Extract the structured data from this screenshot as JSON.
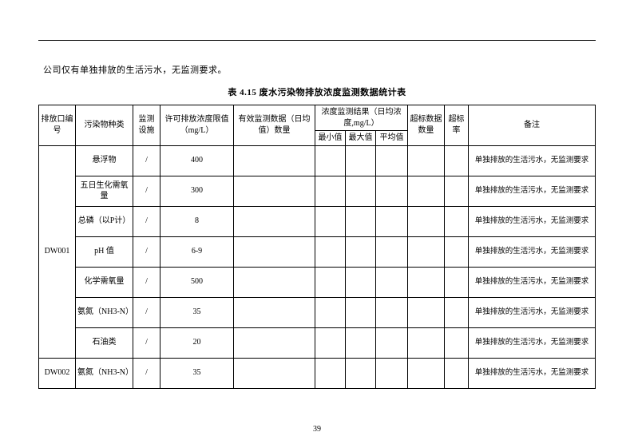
{
  "intro_text": "公司仅有单独排放的生活污水，无监测要求。",
  "table_caption": "表 4.15  废水污染物排放浓度监测数据统计表",
  "page_number": "39",
  "headers": {
    "outlet": "排放口编号",
    "pollutant": "污染物种类",
    "facility": "监测设施",
    "limit": "许可排放浓度限值（mg/L）",
    "valid_count": "有效监测数据（日均值）数量",
    "result_group": "浓度监测结果（日均浓度,mg/L）",
    "min": "最小值",
    "max": "最大值",
    "avg": "平均值",
    "exceed_count": "超标数据数量",
    "exceed_rate": "超标率",
    "remark": "备注"
  },
  "groups": [
    {
      "outlet": "DW001",
      "rows": [
        {
          "pollutant": "悬浮物",
          "facility": "/",
          "limit": "400",
          "valid": "",
          "min": "",
          "max": "",
          "avg": "",
          "excn": "",
          "excr": "",
          "remark": "单独排放的生活污水，无监测要求"
        },
        {
          "pollutant": "五日生化需氧量",
          "facility": "/",
          "limit": "300",
          "valid": "",
          "min": "",
          "max": "",
          "avg": "",
          "excn": "",
          "excr": "",
          "remark": "单独排放的生活污水，无监测要求"
        },
        {
          "pollutant": "总磷（以P计）",
          "facility": "/",
          "limit": "8",
          "valid": "",
          "min": "",
          "max": "",
          "avg": "",
          "excn": "",
          "excr": "",
          "remark": "单独排放的生活污水，无监测要求"
        },
        {
          "pollutant": "pH 值",
          "facility": "/",
          "limit": "6-9",
          "valid": "",
          "min": "",
          "max": "",
          "avg": "",
          "excn": "",
          "excr": "",
          "remark": "单独排放的生活污水，无监测要求"
        },
        {
          "pollutant": "化学需氧量",
          "facility": "/",
          "limit": "500",
          "valid": "",
          "min": "",
          "max": "",
          "avg": "",
          "excn": "",
          "excr": "",
          "remark": "单独排放的生活污水，无监测要求"
        },
        {
          "pollutant": "氨氮（NH3-N）",
          "facility": "/",
          "limit": "35",
          "valid": "",
          "min": "",
          "max": "",
          "avg": "",
          "excn": "",
          "excr": "",
          "remark": "单独排放的生活污水，无监测要求"
        },
        {
          "pollutant": "石油类",
          "facility": "/",
          "limit": "20",
          "valid": "",
          "min": "",
          "max": "",
          "avg": "",
          "excn": "",
          "excr": "",
          "remark": "单独排放的生活污水，无监测要求"
        }
      ]
    },
    {
      "outlet": "DW002",
      "rows": [
        {
          "pollutant": "氨氮（NH3-N）",
          "facility": "/",
          "limit": "35",
          "valid": "",
          "min": "",
          "max": "",
          "avg": "",
          "excn": "",
          "excr": "",
          "remark": "单独排放的生活污水，无监测要求"
        }
      ]
    }
  ]
}
